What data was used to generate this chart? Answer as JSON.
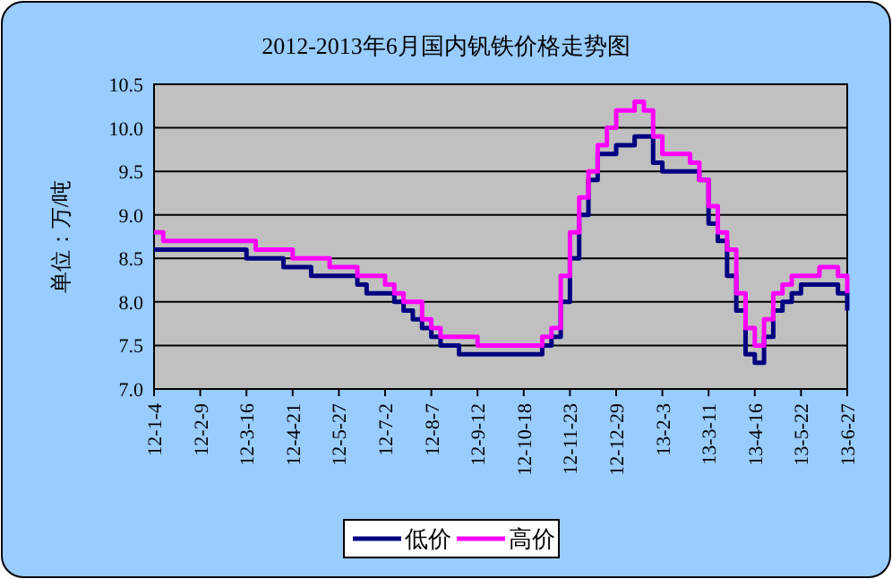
{
  "chart_data": {
    "type": "step",
    "title": "2012-2013年6月国内钒铁价格走势图",
    "ylabel": "单位：万/吨",
    "categories": [
      "12-1-4",
      null,
      null,
      null,
      null,
      "12-2-9",
      null,
      null,
      null,
      null,
      "12-3-16",
      null,
      null,
      null,
      null,
      "12-4-21",
      null,
      null,
      null,
      null,
      "12-5-27",
      null,
      null,
      null,
      null,
      "12-7-2",
      null,
      null,
      null,
      null,
      "12-8-7",
      null,
      null,
      null,
      null,
      "12-9-12",
      null,
      null,
      null,
      null,
      "12-10-18",
      null,
      null,
      null,
      null,
      "12-11-23",
      null,
      null,
      null,
      null,
      "12-12-29",
      null,
      null,
      null,
      null,
      "13-2-3",
      null,
      null,
      null,
      null,
      "13-3-11",
      null,
      null,
      null,
      null,
      "13-4-16",
      null,
      null,
      null,
      null,
      "13-5-22",
      null,
      null,
      null,
      null,
      "13-6-27"
    ],
    "series": [
      {
        "name": "低价",
        "color": "#000080",
        "values": [
          8.6,
          8.6,
          8.6,
          8.6,
          8.6,
          8.6,
          8.6,
          8.6,
          8.6,
          8.6,
          8.5,
          8.5,
          8.5,
          8.5,
          8.4,
          8.4,
          8.4,
          8.3,
          8.3,
          8.3,
          8.3,
          8.3,
          8.2,
          8.1,
          8.1,
          8.1,
          8.0,
          7.9,
          7.8,
          7.7,
          7.6,
          7.5,
          7.5,
          7.4,
          7.4,
          7.4,
          7.4,
          7.4,
          7.4,
          7.4,
          7.4,
          7.4,
          7.5,
          7.6,
          8.0,
          8.5,
          9.0,
          9.4,
          9.7,
          9.7,
          9.8,
          9.8,
          9.9,
          9.9,
          9.6,
          9.5,
          9.5,
          9.5,
          9.5,
          9.4,
          8.9,
          8.7,
          8.3,
          7.9,
          7.4,
          7.3,
          7.6,
          7.9,
          8.0,
          8.1,
          8.2,
          8.2,
          8.2,
          8.2,
          8.1,
          7.9
        ]
      },
      {
        "name": "高价",
        "color": "#ff00ff",
        "values": [
          8.8,
          8.7,
          8.7,
          8.7,
          8.7,
          8.7,
          8.7,
          8.7,
          8.7,
          8.7,
          8.7,
          8.6,
          8.6,
          8.6,
          8.6,
          8.5,
          8.5,
          8.5,
          8.5,
          8.4,
          8.4,
          8.4,
          8.3,
          8.3,
          8.3,
          8.2,
          8.1,
          8.0,
          8.0,
          7.8,
          7.7,
          7.6,
          7.6,
          7.6,
          7.6,
          7.5,
          7.5,
          7.5,
          7.5,
          7.5,
          7.5,
          7.5,
          7.6,
          7.7,
          8.3,
          8.8,
          9.2,
          9.5,
          9.8,
          10.0,
          10.2,
          10.2,
          10.3,
          10.2,
          9.9,
          9.7,
          9.7,
          9.7,
          9.6,
          9.4,
          9.1,
          8.8,
          8.6,
          8.1,
          7.7,
          7.5,
          7.8,
          8.1,
          8.2,
          8.3,
          8.3,
          8.3,
          8.4,
          8.4,
          8.3,
          8.1
        ]
      }
    ],
    "ylim": [
      7,
      10.5
    ],
    "yticks": [
      {
        "value": 7,
        "label": "7.0"
      },
      {
        "value": 7.5,
        "label": "7.5"
      },
      {
        "value": 8,
        "label": "8.0"
      },
      {
        "value": 8.5,
        "label": "8.5"
      },
      {
        "value": 9,
        "label": "9.0"
      },
      {
        "value": 9.5,
        "label": "9.5"
      },
      {
        "value": 10,
        "label": "10.0"
      },
      {
        "value": 10.5,
        "label": "10.5"
      }
    ],
    "grid": "y",
    "legend": "bottom",
    "marker": "none",
    "line_style": "solid"
  }
}
